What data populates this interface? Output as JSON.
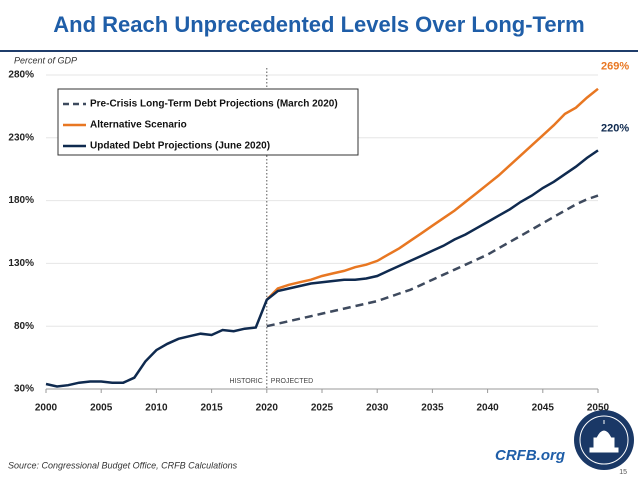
{
  "chart_data": {
    "type": "line",
    "title": "And Reach Unprecedented Levels Over Long-Term",
    "y_label": "Percent of GDP",
    "source": "Source: Congressional Budget Office, CRFB Calculations",
    "brand": "CRFB.org",
    "page_number": "15",
    "annotations": [
      "HISTORIC",
      "PROJECTED"
    ],
    "divider_x": 2020,
    "grid": true,
    "legend": "top-left",
    "x": [
      2000,
      2001,
      2002,
      2003,
      2004,
      2005,
      2006,
      2007,
      2008,
      2009,
      2010,
      2011,
      2012,
      2013,
      2014,
      2015,
      2016,
      2017,
      2018,
      2019,
      2020,
      2021,
      2022,
      2023,
      2024,
      2025,
      2026,
      2027,
      2028,
      2029,
      2030,
      2031,
      2032,
      2033,
      2034,
      2035,
      2036,
      2037,
      2038,
      2039,
      2040,
      2041,
      2042,
      2043,
      2044,
      2045,
      2046,
      2047,
      2048,
      2049,
      2050
    ],
    "xlim": [
      2000,
      2050
    ],
    "xticks": [
      2000,
      2005,
      2010,
      2015,
      2020,
      2025,
      2030,
      2035,
      2040,
      2045,
      2050
    ],
    "ylim": [
      30,
      280
    ],
    "yticks": [
      {
        "value": 30,
        "label": "30%"
      },
      {
        "value": 80,
        "label": "80%"
      },
      {
        "value": 130,
        "label": "130%"
      },
      {
        "value": 180,
        "label": "180%"
      },
      {
        "value": 230,
        "label": "230%"
      },
      {
        "value": 280,
        "label": "280%"
      }
    ],
    "series": [
      {
        "name": "Pre-Crisis Long-Term Debt Projections (March 2020)",
        "color": "#3e4a5e",
        "dash": true,
        "values": [
          null,
          null,
          null,
          null,
          null,
          null,
          null,
          null,
          null,
          null,
          null,
          null,
          null,
          null,
          null,
          null,
          null,
          null,
          null,
          null,
          80,
          82,
          84,
          86,
          88,
          90,
          92,
          94,
          96,
          98,
          100,
          103,
          106,
          109,
          113,
          117,
          121,
          125,
          129,
          133,
          137,
          142,
          147,
          152,
          157,
          162,
          167,
          172,
          177,
          181,
          184
        ]
      },
      {
        "name": "Alternative Scenario",
        "color": "#e87722",
        "dash": false,
        "values": [
          null,
          null,
          null,
          null,
          null,
          null,
          null,
          null,
          null,
          null,
          null,
          null,
          null,
          null,
          null,
          null,
          null,
          null,
          null,
          null,
          101,
          110,
          113,
          115,
          117,
          120,
          122,
          124,
          127,
          129,
          132,
          137,
          142,
          148,
          154,
          160,
          166,
          172,
          179,
          186,
          193,
          200,
          208,
          216,
          224,
          232,
          240,
          249,
          254,
          262,
          269
        ],
        "value_labels": [
          null,
          null,
          null,
          null,
          null,
          null,
          null,
          null,
          null,
          null,
          null,
          null,
          null,
          null,
          null,
          null,
          null,
          null,
          null,
          null,
          null,
          null,
          null,
          null,
          null,
          null,
          null,
          null,
          null,
          null,
          null,
          null,
          null,
          null,
          null,
          null,
          null,
          null,
          null,
          null,
          null,
          null,
          null,
          null,
          null,
          null,
          null,
          null,
          null,
          null,
          "269%"
        ]
      },
      {
        "name": "Updated Debt Projections (June 2020)",
        "color": "#0f2a4f",
        "dash": false,
        "values": [
          34,
          32,
          33,
          35,
          36,
          36,
          35,
          35,
          39,
          52,
          61,
          66,
          70,
          72,
          74,
          73,
          77,
          76,
          78,
          79,
          101,
          108,
          110,
          112,
          114,
          115,
          116,
          117,
          117,
          118,
          120,
          124,
          128,
          132,
          136,
          140,
          144,
          149,
          153,
          158,
          163,
          168,
          173,
          179,
          184,
          190,
          195,
          201,
          207,
          214,
          220
        ],
        "value_labels": [
          null,
          null,
          null,
          null,
          null,
          null,
          null,
          null,
          null,
          null,
          null,
          null,
          null,
          null,
          null,
          null,
          null,
          null,
          null,
          null,
          null,
          null,
          null,
          null,
          null,
          null,
          null,
          null,
          null,
          null,
          null,
          null,
          null,
          null,
          null,
          null,
          null,
          null,
          null,
          null,
          null,
          null,
          null,
          null,
          null,
          null,
          null,
          null,
          null,
          null,
          "220%"
        ]
      }
    ]
  }
}
